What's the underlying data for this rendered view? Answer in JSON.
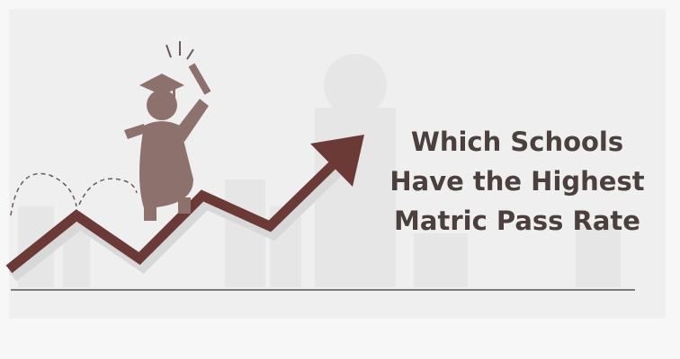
{
  "title": {
    "lines": [
      "Which Schools",
      "Have the Highest",
      "Matric Pass Rate"
    ]
  }
}
